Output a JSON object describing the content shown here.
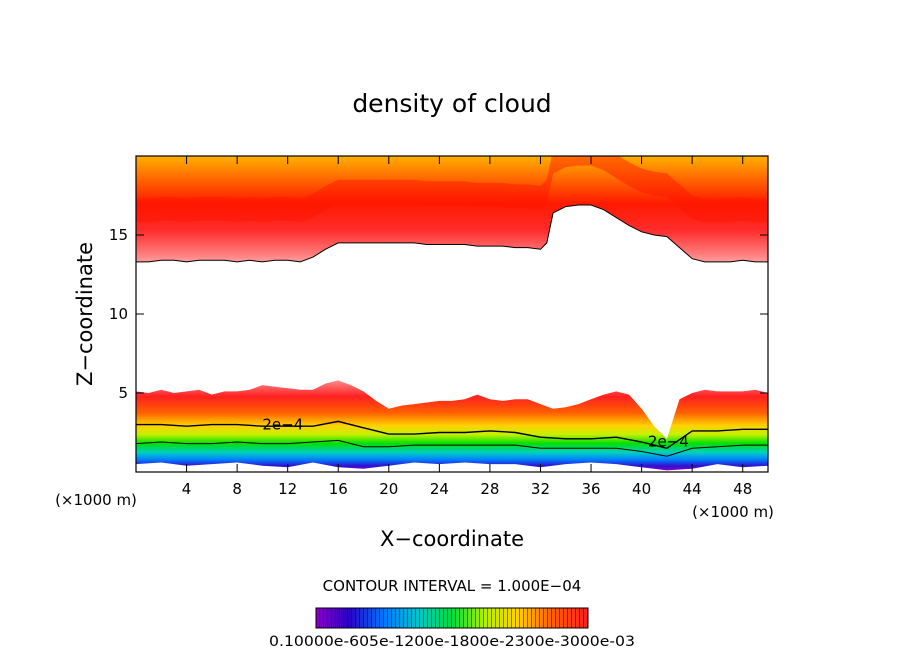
{
  "chart_data": {
    "type": "contour",
    "title": "density of cloud",
    "xlabel": "X−coordinate",
    "ylabel": "Z−coordinate",
    "x_unit_left": "(×1000 m)",
    "x_unit_right": "(×1000 m)",
    "xlim": [
      0,
      50
    ],
    "ylim": [
      0,
      20
    ],
    "x_ticks": [
      4,
      8,
      12,
      16,
      20,
      24,
      28,
      32,
      36,
      40,
      44,
      48
    ],
    "x_tick_labels": [
      "4",
      "8",
      "12",
      "16",
      "20",
      "24",
      "28",
      "32",
      "36",
      "40",
      "44",
      "48"
    ],
    "y_ticks": [
      5,
      10,
      15
    ],
    "y_tick_labels": [
      "5",
      "10",
      "15"
    ],
    "contour_interval_text": "CONTOUR INTERVAL = 1.000E−04",
    "colorbar_label_text": "0.10000e-605e-1200e-1800e-2300e-3000e-03",
    "contour_labels": [
      "2e−4",
      "2e−4"
    ],
    "upper_layer_bottom": {
      "x": [
        0,
        1,
        2,
        3,
        4,
        5,
        6,
        7,
        8,
        9,
        10,
        11,
        12,
        13,
        14,
        15,
        16,
        17,
        18,
        19,
        20,
        21,
        22,
        23,
        24,
        25,
        26,
        27,
        28,
        29,
        30,
        31,
        32,
        32.5,
        33,
        34,
        35,
        36,
        37,
        38,
        39,
        40,
        41,
        42,
        43,
        44,
        45,
        46,
        47,
        48,
        49,
        50
      ],
      "z": [
        13.3,
        13.3,
        13.4,
        13.4,
        13.3,
        13.4,
        13.4,
        13.4,
        13.3,
        13.4,
        13.3,
        13.4,
        13.4,
        13.3,
        13.6,
        14.1,
        14.5,
        14.5,
        14.5,
        14.5,
        14.5,
        14.5,
        14.5,
        14.4,
        14.4,
        14.4,
        14.4,
        14.3,
        14.3,
        14.3,
        14.2,
        14.2,
        14.1,
        14.5,
        16.4,
        16.8,
        16.9,
        16.9,
        16.6,
        16.1,
        15.6,
        15.2,
        15.0,
        14.9,
        14.2,
        13.5,
        13.3,
        13.3,
        13.3,
        13.4,
        13.3,
        13.3
      ]
    },
    "lower_layer_top": {
      "x": [
        0,
        1,
        2,
        3,
        4,
        5,
        6,
        7,
        8,
        9,
        10,
        11,
        12,
        13,
        14,
        15,
        16,
        17,
        18,
        19,
        20,
        21,
        22,
        23,
        24,
        25,
        26,
        27,
        28,
        29,
        30,
        31,
        32,
        33,
        34,
        35,
        36,
        37,
        38,
        39,
        40,
        41,
        42,
        43,
        44,
        45,
        46,
        47,
        48,
        49,
        50
      ],
      "z": [
        5.1,
        5.0,
        5.2,
        5.0,
        5.1,
        5.2,
        4.9,
        5.1,
        5.1,
        5.2,
        5.5,
        5.4,
        5.3,
        5.2,
        5.2,
        5.6,
        5.8,
        5.5,
        5.1,
        4.5,
        4.0,
        4.2,
        4.3,
        4.4,
        4.5,
        4.5,
        4.6,
        4.9,
        4.6,
        4.5,
        4.6,
        4.6,
        4.3,
        4.0,
        4.1,
        4.3,
        4.6,
        4.9,
        5.1,
        4.9,
        4.0,
        2.9,
        2.1,
        4.6,
        5.0,
        5.2,
        5.1,
        5.1,
        5.1,
        5.2,
        5.0
      ]
    },
    "lower_layer_bottom": {
      "x": [
        0,
        2,
        4,
        6,
        8,
        10,
        12,
        14,
        16,
        18,
        20,
        22,
        24,
        26,
        28,
        30,
        32,
        34,
        36,
        38,
        40,
        42,
        44,
        46,
        48,
        50
      ],
      "z": [
        0.5,
        0.6,
        0.4,
        0.5,
        0.6,
        0.4,
        0.3,
        0.6,
        0.3,
        0.2,
        0.4,
        0.6,
        0.5,
        0.6,
        0.5,
        0.5,
        0.3,
        0.5,
        0.6,
        0.5,
        0.3,
        0.1,
        0.2,
        0.5,
        0.3,
        0.4
      ]
    },
    "contour_2e4_line": {
      "x": [
        0,
        2,
        4,
        6,
        8,
        10,
        12,
        14,
        16,
        18,
        20,
        22,
        24,
        26,
        28,
        30,
        32,
        34,
        36,
        38,
        40,
        42,
        44,
        46,
        48,
        50
      ],
      "z": [
        3.0,
        3.0,
        2.9,
        3.0,
        3.0,
        2.9,
        2.9,
        2.9,
        3.2,
        2.8,
        2.4,
        2.4,
        2.5,
        2.5,
        2.6,
        2.5,
        2.2,
        2.1,
        2.1,
        2.2,
        1.9,
        1.5,
        2.6,
        2.6,
        2.7,
        2.7
      ]
    },
    "contour_mid_line": {
      "x": [
        0,
        2,
        4,
        6,
        8,
        10,
        12,
        14,
        16,
        18,
        20,
        22,
        24,
        26,
        28,
        30,
        32,
        34,
        36,
        38,
        40,
        42,
        44,
        46,
        48,
        50
      ],
      "z": [
        1.8,
        1.9,
        1.8,
        1.8,
        1.9,
        1.8,
        1.8,
        1.9,
        2.0,
        1.6,
        1.6,
        1.7,
        1.7,
        1.7,
        1.7,
        1.7,
        1.5,
        1.5,
        1.5,
        1.5,
        1.3,
        1.0,
        1.5,
        1.6,
        1.7,
        1.7
      ]
    },
    "colormap": [
      "#ffffff",
      "#ff6e6e",
      "#ff0000",
      "#ff5a00",
      "#ff9a00",
      "#ffd200",
      "#e6f000",
      "#96f000",
      "#00e000",
      "#00d69a",
      "#00c8ff",
      "#0064ff",
      "#3c00c8",
      "#8c00c8"
    ]
  }
}
